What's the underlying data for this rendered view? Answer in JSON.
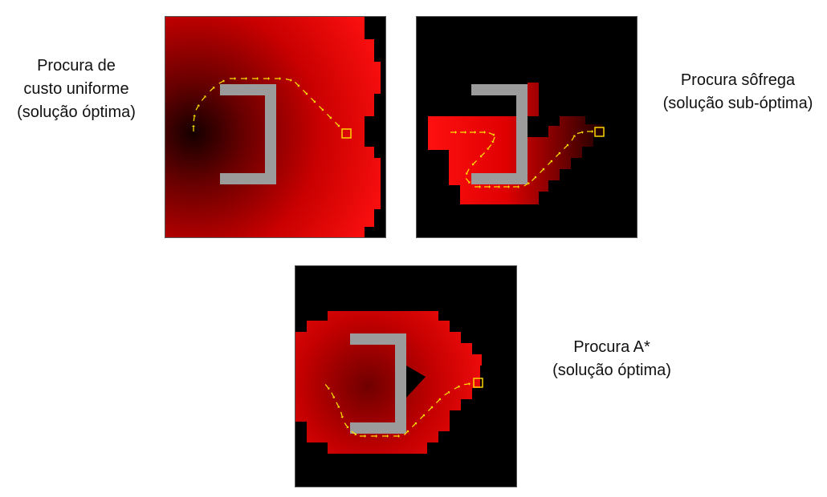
{
  "captions": {
    "ucs": [
      "Procura de",
      "custo uniforme",
      "(solução óptima)"
    ],
    "gbfs": [
      "Procura sôfrega",
      "(solução sub-óptima)"
    ],
    "astar": [
      "Procura A*",
      "(solução óptima)"
    ]
  },
  "colors": {
    "background": "#000000",
    "expanded_near": "#2a0000",
    "expanded_far": "#ff1010",
    "obstacle": "#9b9b9b",
    "path_arrow": "#ffe800",
    "goal_marker": "#ffd400"
  },
  "icons": {
    "path_arrow": "arrow-icon",
    "goal": "goal-square-icon"
  }
}
